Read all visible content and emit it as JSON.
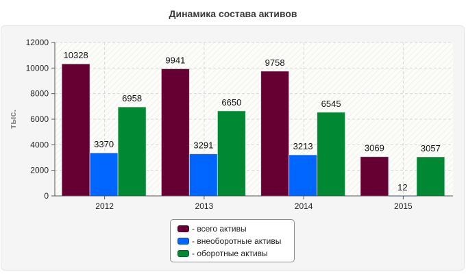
{
  "title": "Динамика состава активов",
  "colors": {
    "series_0": "#660033",
    "series_1": "#0066ff",
    "series_2": "#008833"
  },
  "chart_data": {
    "type": "bar",
    "title": "Динамика состава активов",
    "xlabel": "",
    "ylabel": "тыс.",
    "ylim": [
      0,
      12000
    ],
    "yticks": [
      "0",
      "2000",
      "4000",
      "6000",
      "8000",
      "10000",
      "12000"
    ],
    "grid": true,
    "legend_position": "bottom",
    "categories": [
      "2012",
      "2013",
      "2014",
      "2015"
    ],
    "series": [
      {
        "name": "- всего активы",
        "values": [
          10328,
          9941,
          9758,
          3069
        ],
        "labels": [
          "10328",
          "9941",
          "9758",
          "3069"
        ]
      },
      {
        "name": "- внеоборотные активы",
        "values": [
          3370,
          3291,
          3213,
          12
        ],
        "labels": [
          "3370",
          "3291",
          "3213",
          "12"
        ]
      },
      {
        "name": "- оборотные активы",
        "values": [
          6958,
          6650,
          6545,
          3057
        ],
        "labels": [
          "6958",
          "6650",
          "6545",
          "3057"
        ]
      }
    ]
  }
}
